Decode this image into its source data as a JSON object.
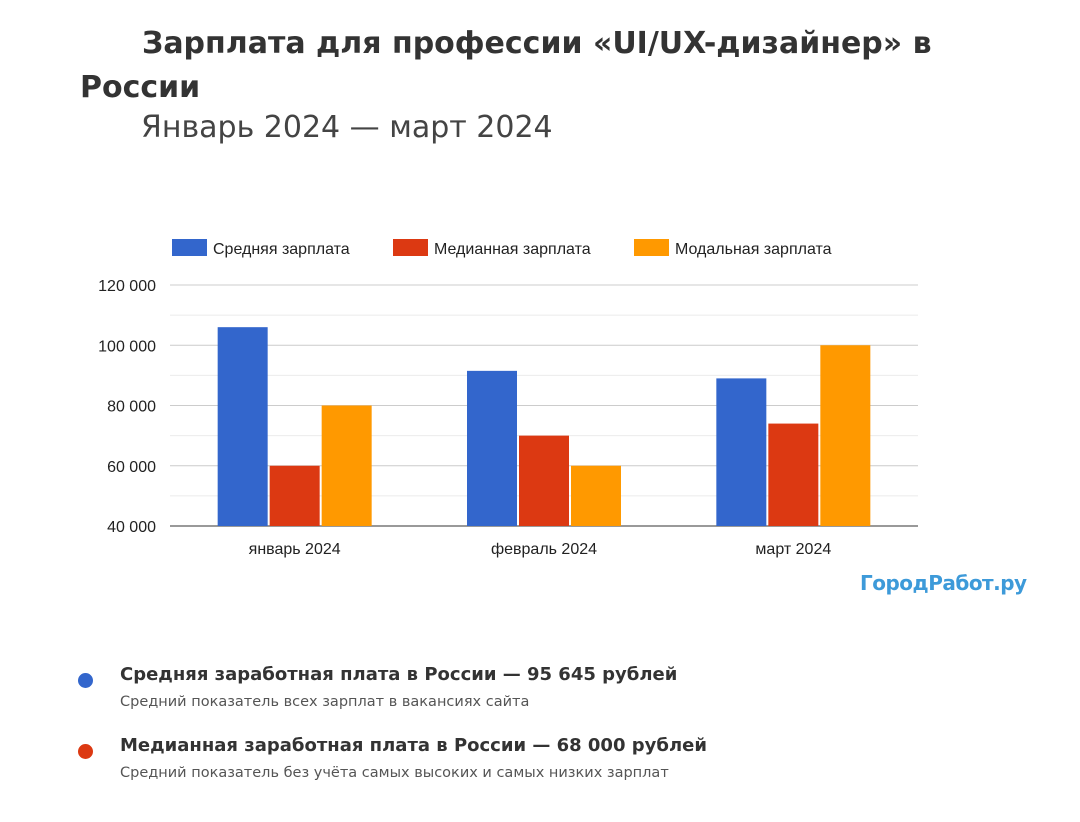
{
  "header": {
    "title": "Зарплата для профессии «UI/UX-дизайнер» в России",
    "subtitle": "Январь 2024 — март 2024"
  },
  "colors": {
    "series": [
      "#3366cc",
      "#dc3912",
      "#ff9900"
    ],
    "brand": "#3d9ad9"
  },
  "chart_data": {
    "type": "bar",
    "categories": [
      "январь 2024",
      "февраль 2024",
      "март 2024"
    ],
    "series": [
      {
        "name": "Средняя зарплата",
        "values": [
          106000,
          91500,
          89000
        ]
      },
      {
        "name": "Медианная зарплата",
        "values": [
          60000,
          70000,
          74000
        ]
      },
      {
        "name": "Модальная зарплата",
        "values": [
          80000,
          60000,
          100000
        ]
      }
    ],
    "ylim": [
      40000,
      120000
    ],
    "yticks": [
      "40 000",
      "60 000",
      "80 000",
      "100 000",
      "120 000"
    ],
    "grid": true,
    "legend": "top"
  },
  "brand": {
    "label": "ГородРабот.ру"
  },
  "stats": [
    {
      "title": "Средняя заработная плата в России — 95 645 рублей",
      "description": "Средний показатель всех зарплат в вакансиях сайта",
      "color": "#3366cc"
    },
    {
      "title": "Медианная заработная плата в России — 68 000 рублей",
      "description": "Средний показатель без учёта самых высоких и самых низких зарплат",
      "color": "#dc3912"
    }
  ]
}
